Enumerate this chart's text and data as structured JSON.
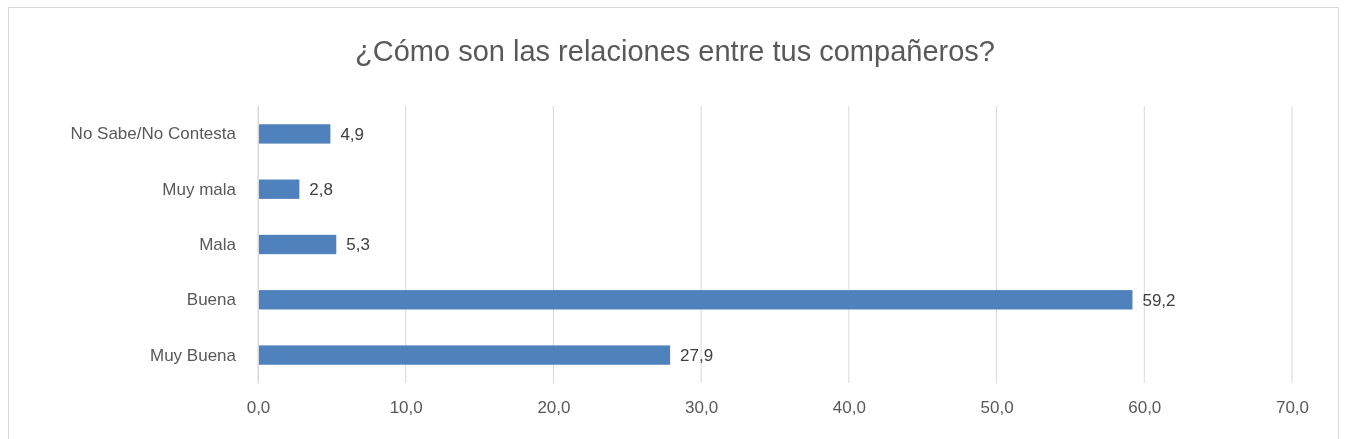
{
  "chart_data": {
    "type": "bar",
    "orientation": "horizontal",
    "title": "¿Cómo son las relaciones entre tus compañeros?",
    "categories": [
      "No Sabe/No Contesta",
      "Muy mala",
      "Mala",
      "Buena",
      "Muy Buena"
    ],
    "values": [
      4.9,
      2.8,
      5.3,
      59.2,
      27.9
    ],
    "value_labels": [
      "4,9",
      "2,8",
      "5,3",
      "59,2",
      "27,9"
    ],
    "color": "#4f81bd",
    "xlim": [
      0,
      70
    ],
    "xticks": [
      {
        "value": 0,
        "label": "0,0"
      },
      {
        "value": 10,
        "label": "10,0"
      },
      {
        "value": 20,
        "label": "20,0"
      },
      {
        "value": 30,
        "label": "30,0"
      },
      {
        "value": 40,
        "label": "40,0"
      },
      {
        "value": 50,
        "label": "50,0"
      },
      {
        "value": 60,
        "label": "60,0"
      },
      {
        "value": 70,
        "label": "70,0"
      }
    ],
    "grid": "x"
  }
}
